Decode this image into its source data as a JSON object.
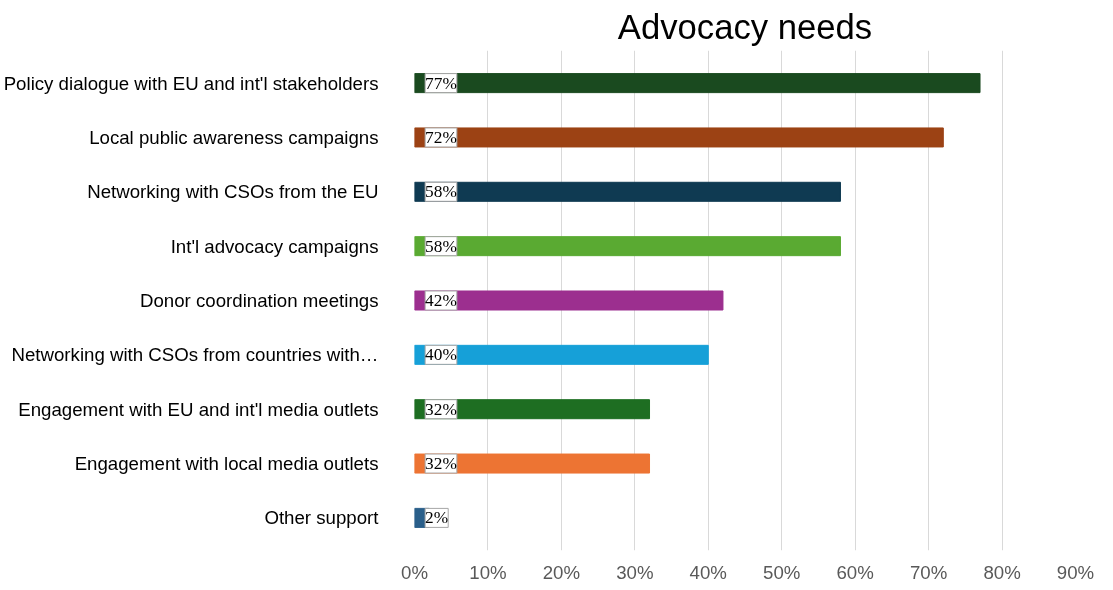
{
  "chart_data": {
    "type": "bar",
    "orientation": "horizontal",
    "title": "Advocacy needs",
    "categories": [
      "Policy dialogue with EU and int'l stakeholders",
      "Local public awareness campaigns",
      "Networking with CSOs from the EU",
      "Int'l advocacy campaigns",
      "Donor coordination meetings",
      "Networking with CSOs from countries with…",
      "Engagement with EU and int'l media outlets",
      "Engagement with local media outlets",
      "Other support"
    ],
    "values": [
      77,
      72,
      58,
      58,
      42,
      40,
      32,
      32,
      2
    ],
    "colors": [
      "#1a4a1f",
      "#9c4214",
      "#0f3a52",
      "#5aaa32",
      "#9c2f8f",
      "#16a0d8",
      "#1e6e22",
      "#ed7433",
      "#2a5f8a"
    ],
    "value_labels": [
      "77%",
      "72%",
      "58%",
      "58%",
      "42%",
      "40%",
      "32%",
      "32%",
      "2%"
    ],
    "xlim": [
      0,
      90
    ],
    "xticks": [
      {
        "value": 0,
        "label": "0%"
      },
      {
        "value": 10,
        "label": "10%"
      },
      {
        "value": 20,
        "label": "20%"
      },
      {
        "value": 30,
        "label": "30%"
      },
      {
        "value": 40,
        "label": "40%"
      },
      {
        "value": 50,
        "label": "50%"
      },
      {
        "value": 60,
        "label": "60%"
      },
      {
        "value": 70,
        "label": "70%"
      },
      {
        "value": 80,
        "label": "80%"
      },
      {
        "value": 90,
        "label": "90%"
      }
    ],
    "grid": "x"
  }
}
